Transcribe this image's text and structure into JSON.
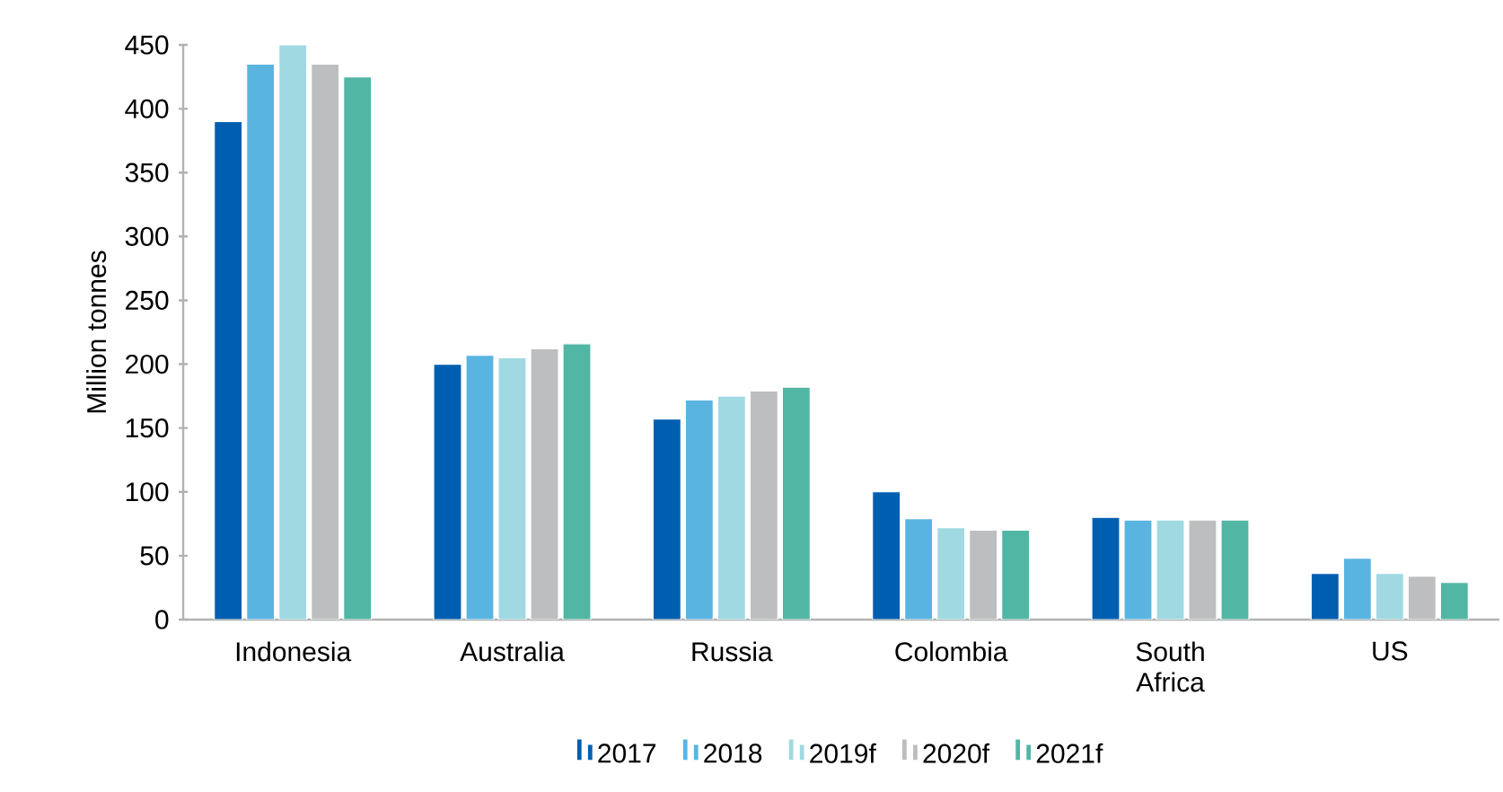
{
  "chart_data": {
    "type": "bar",
    "ylabel": "Million tonnes",
    "categories": [
      "Indonesia",
      "Australia",
      "Russia",
      "Colombia",
      "South Africa",
      "US"
    ],
    "series": [
      {
        "name": "2017",
        "color": "#005eb0",
        "values": [
          390,
          200,
          157,
          100,
          80,
          36
        ]
      },
      {
        "name": "2018",
        "color": "#5ab4e0",
        "values": [
          435,
          207,
          172,
          79,
          78,
          48
        ]
      },
      {
        "name": "2019f",
        "color": "#a0d9e2",
        "values": [
          450,
          205,
          175,
          72,
          78,
          36
        ]
      },
      {
        "name": "2020f",
        "color": "#bcbec0",
        "values": [
          435,
          212,
          179,
          70,
          78,
          34
        ]
      },
      {
        "name": "2021f",
        "color": "#52b6a4",
        "values": [
          425,
          216,
          182,
          70,
          78,
          29
        ]
      }
    ],
    "ylim": [
      0,
      450
    ],
    "yticks": [
      0,
      50,
      100,
      150,
      200,
      250,
      300,
      350,
      400,
      450
    ],
    "grid": false,
    "legend": "bottom"
  }
}
